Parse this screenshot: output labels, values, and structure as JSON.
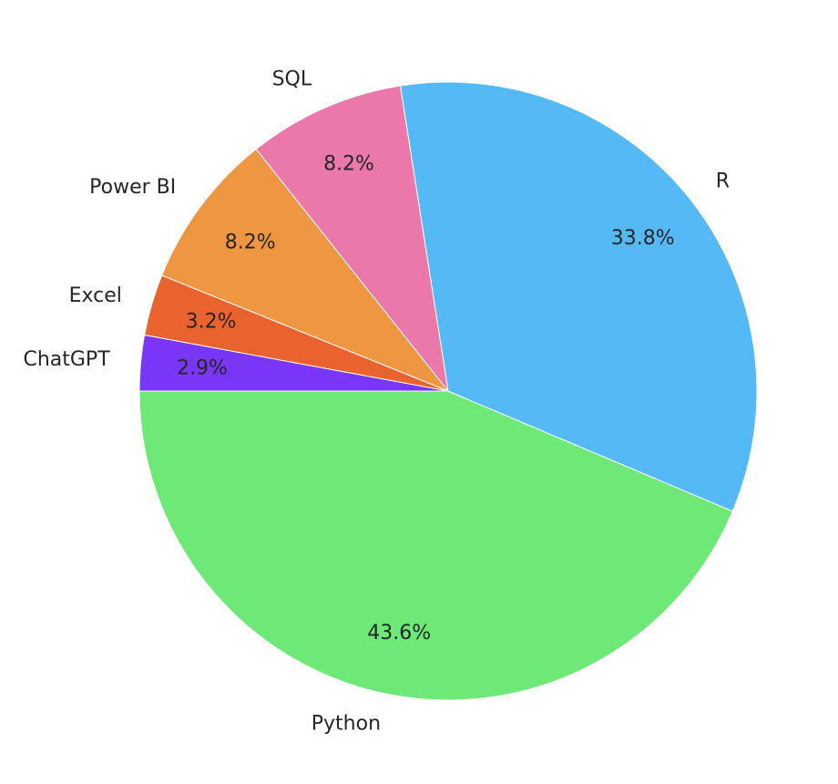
{
  "chart_data": {
    "type": "pie",
    "title": "",
    "slices": [
      {
        "label": "Python",
        "value": 43.6,
        "pct_label": "43.6%",
        "color": "#6ee978"
      },
      {
        "label": "R",
        "value": 33.8,
        "pct_label": "33.8%",
        "color": "#55b9f5"
      },
      {
        "label": "SQL",
        "value": 8.2,
        "pct_label": "8.2%",
        "color": "#ea78ab"
      },
      {
        "label": "Power BI",
        "value": 8.2,
        "pct_label": "8.2%",
        "color": "#ee9642"
      },
      {
        "label": "Excel",
        "value": 3.2,
        "pct_label": "3.2%",
        "color": "#ea622e"
      },
      {
        "label": "ChatGPT",
        "value": 2.9,
        "pct_label": "2.9%",
        "color": "#7936f6"
      }
    ],
    "start_angle_deg": 180,
    "direction": "counterclockwise",
    "legend": "none"
  }
}
